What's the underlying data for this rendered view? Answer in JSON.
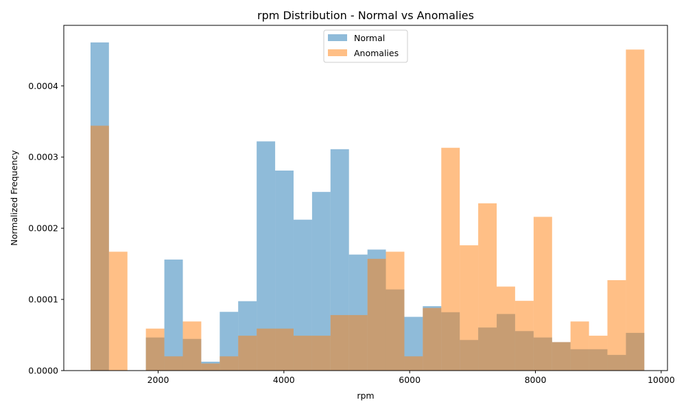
{
  "chart_data": {
    "type": "histogram",
    "title": "rpm Distribution - Normal vs Anomalies",
    "xlabel": "rpm",
    "ylabel": "Normalized Frequency",
    "xlim": [
      500,
      10100
    ],
    "ylim": [
      0,
      0.000485
    ],
    "xticks": [
      2000,
      4000,
      6000,
      8000,
      10000
    ],
    "xtick_labels": [
      "2000",
      "4000",
      "6000",
      "8000",
      "10000"
    ],
    "yticks": [
      0,
      0.0001,
      0.0002,
      0.0003,
      0.0004
    ],
    "ytick_labels": [
      "0.0000",
      "0.0001",
      "0.0002",
      "0.0003",
      "0.0004"
    ],
    "legend_position": "top-center",
    "series": [
      {
        "name": "Normal",
        "color": "#1f77b4",
        "alpha": 0.5,
        "bins": [
          [
            925,
            1218,
            0.000461
          ],
          [
            1218,
            1512,
            0.0
          ],
          [
            1512,
            1805,
            0.0
          ],
          [
            1805,
            2099,
            4.65e-05
          ],
          [
            2099,
            2393,
            0.000156
          ],
          [
            2393,
            2686,
            4.45e-05
          ],
          [
            2686,
            2980,
            1.25e-05
          ],
          [
            2980,
            3273,
            8.25e-05
          ],
          [
            3273,
            3567,
            9.75e-05
          ],
          [
            3567,
            3861,
            0.000322
          ],
          [
            3861,
            4154,
            0.000281
          ],
          [
            4154,
            4448,
            0.000212
          ],
          [
            4448,
            4741,
            0.000251
          ],
          [
            4741,
            5035,
            0.000311
          ],
          [
            5035,
            5329,
            0.000163
          ],
          [
            5329,
            5622,
            0.00017
          ],
          [
            5622,
            5916,
            0.000114
          ],
          [
            5916,
            6209,
            7.55e-05
          ],
          [
            6209,
            6503,
            9.05e-05
          ],
          [
            6503,
            6797,
            8.2e-05
          ],
          [
            6797,
            7090,
            4.3e-05
          ],
          [
            7090,
            7384,
            6.05e-05
          ],
          [
            7384,
            7677,
            7.95e-05
          ],
          [
            7677,
            7971,
            5.55e-05
          ],
          [
            7971,
            8265,
            4.65e-05
          ],
          [
            8265,
            8558,
            4e-05
          ],
          [
            8558,
            8852,
            3e-05
          ],
          [
            8852,
            9145,
            3e-05
          ],
          [
            9145,
            9439,
            2.2e-05
          ],
          [
            9439,
            9732,
            5.3e-05
          ]
        ]
      },
      {
        "name": "Anomalies",
        "color": "#ff7f0e",
        "alpha": 0.5,
        "bins": [
          [
            925,
            1218,
            0.000344
          ],
          [
            1218,
            1512,
            0.000167
          ],
          [
            1512,
            1805,
            0.0
          ],
          [
            1805,
            2099,
            5.9e-05
          ],
          [
            2099,
            2393,
            2e-05
          ],
          [
            2393,
            2686,
            6.9e-05
          ],
          [
            2686,
            2980,
            1e-05
          ],
          [
            2980,
            3273,
            2e-05
          ],
          [
            3273,
            3567,
            4.9e-05
          ],
          [
            3567,
            3861,
            5.9e-05
          ],
          [
            3861,
            4154,
            5.9e-05
          ],
          [
            4154,
            4448,
            4.9e-05
          ],
          [
            4448,
            4741,
            4.9e-05
          ],
          [
            4741,
            5035,
            7.8e-05
          ],
          [
            5035,
            5329,
            7.8e-05
          ],
          [
            5329,
            5622,
            0.000157
          ],
          [
            5622,
            5916,
            0.000167
          ],
          [
            5916,
            6209,
            2e-05
          ],
          [
            6209,
            6503,
            8.8e-05
          ],
          [
            6503,
            6797,
            0.000313
          ],
          [
            6797,
            7090,
            0.000176
          ],
          [
            7090,
            7384,
            0.000235
          ],
          [
            7384,
            7677,
            0.000118
          ],
          [
            7677,
            7971,
            9.8e-05
          ],
          [
            7971,
            8265,
            0.000216
          ],
          [
            8265,
            8558,
            4e-05
          ],
          [
            8558,
            8852,
            6.9e-05
          ],
          [
            8852,
            9145,
            4.9e-05
          ],
          [
            9145,
            9439,
            0.000127
          ],
          [
            9439,
            9732,
            0.000451
          ]
        ]
      }
    ]
  }
}
